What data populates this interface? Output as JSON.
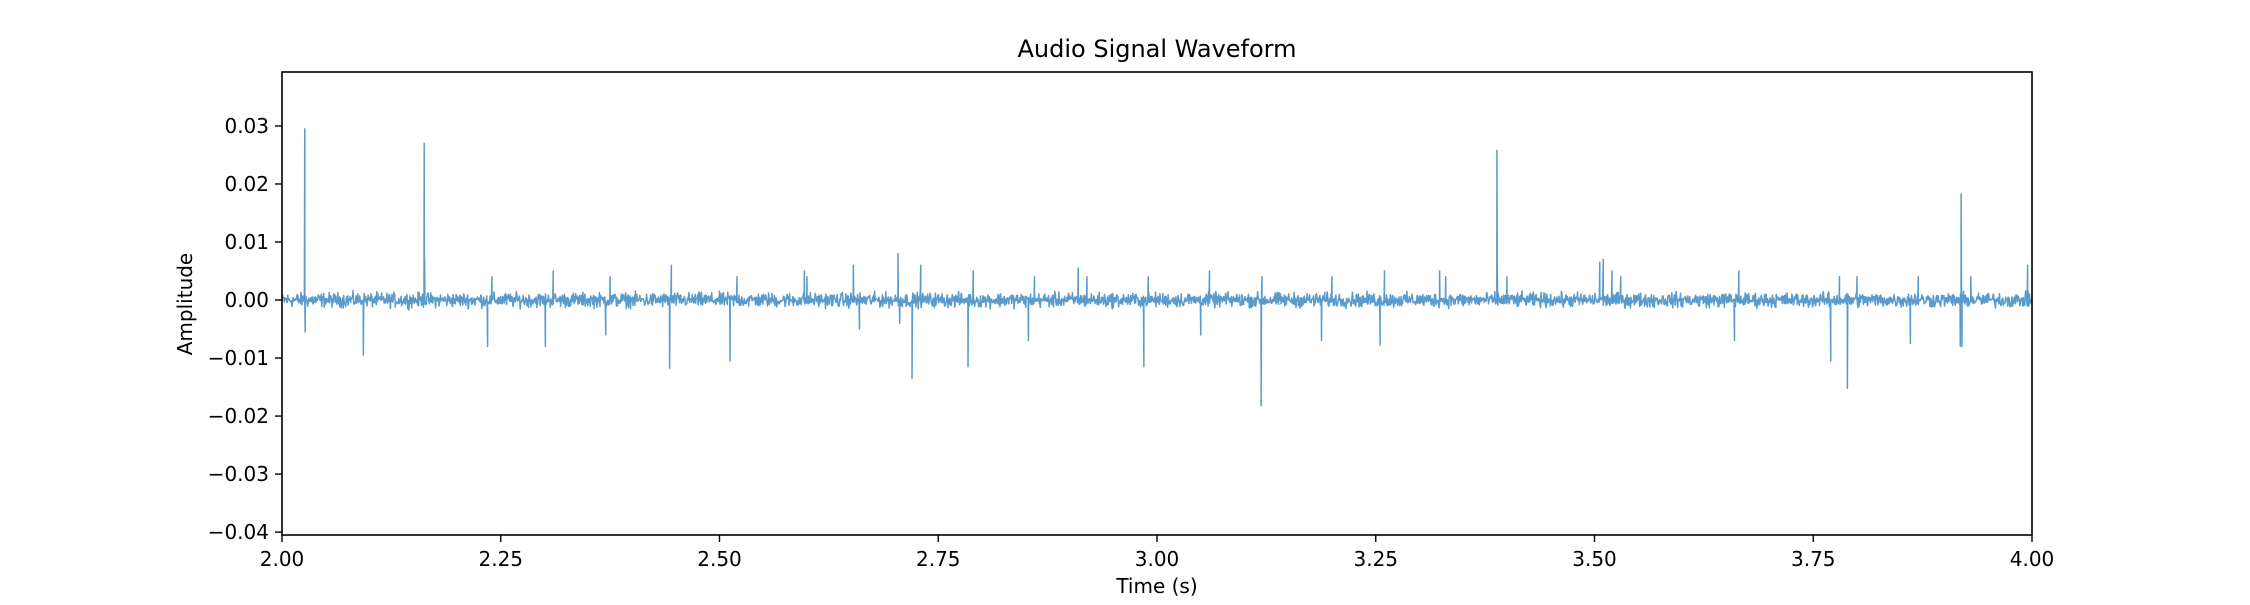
{
  "chart_data": {
    "type": "line",
    "title": "Audio Signal Waveform",
    "xlabel": "Time (s)",
    "ylabel": "Amplitude",
    "xlim": [
      2.0,
      4.0
    ],
    "ylim": [
      -0.0405,
      0.0393
    ],
    "xticks": [
      2.0,
      2.25,
      2.5,
      2.75,
      3.0,
      3.25,
      3.5,
      3.75,
      4.0
    ],
    "xtick_labels": [
      "2.00",
      "2.25",
      "2.50",
      "2.75",
      "3.00",
      "3.25",
      "3.50",
      "3.75",
      "4.00"
    ],
    "yticks": [
      0.03,
      0.02,
      0.01,
      0.0,
      -0.01,
      -0.02,
      -0.03,
      -0.04
    ],
    "ytick_labels": [
      "0.03",
      "0.02",
      "0.01",
      "0.00",
      "−0.01",
      "−0.02",
      "−0.03",
      "−0.04"
    ],
    "grid": false,
    "series": [
      {
        "color": "#5b9bcc",
        "baseline_noise_amplitude": 0.0018,
        "x": [
          2.0,
          2.0255,
          2.026,
          2.0265,
          2.03,
          2.093,
          2.1,
          2.162,
          2.1625,
          2.163,
          2.17,
          2.235,
          2.24,
          2.301,
          2.31,
          2.37,
          2.375,
          2.443,
          2.445,
          2.512,
          2.52,
          2.597,
          2.6,
          2.653,
          2.66,
          2.704,
          2.706,
          2.72,
          2.73,
          2.784,
          2.79,
          2.853,
          2.86,
          2.91,
          2.92,
          2.985,
          2.99,
          3.05,
          3.06,
          3.119,
          3.12,
          3.188,
          3.2,
          3.255,
          3.26,
          3.323,
          3.33,
          3.388,
          3.3885,
          3.389,
          3.4,
          3.506,
          3.51,
          3.52,
          3.53,
          3.66,
          3.665,
          3.77,
          3.78,
          3.789,
          3.8,
          3.861,
          3.87,
          3.918,
          3.919,
          3.92,
          3.93,
          3.995,
          4.0
        ],
        "y": [
          0.0,
          0.0,
          0.0295,
          -0.0055,
          0.0,
          -0.0095,
          0.0,
          0.0,
          0.027,
          0.007,
          0.0,
          -0.008,
          0.004,
          -0.008,
          0.005,
          -0.006,
          0.004,
          -0.0118,
          0.006,
          -0.0105,
          0.004,
          0.005,
          0.004,
          0.006,
          -0.005,
          0.008,
          -0.004,
          -0.0135,
          0.006,
          -0.0115,
          0.005,
          -0.007,
          0.004,
          0.0055,
          0.004,
          -0.0115,
          0.004,
          -0.006,
          0.005,
          -0.0182,
          0.004,
          -0.007,
          0.004,
          -0.0078,
          0.005,
          0.005,
          0.004,
          0.0,
          0.0258,
          0.004,
          0.004,
          0.0065,
          0.007,
          0.005,
          0.004,
          -0.007,
          0.005,
          -0.0105,
          0.004,
          -0.0152,
          0.004,
          -0.0075,
          0.004,
          -0.008,
          0.0183,
          -0.008,
          0.004,
          0.006,
          0.0
        ]
      }
    ]
  }
}
